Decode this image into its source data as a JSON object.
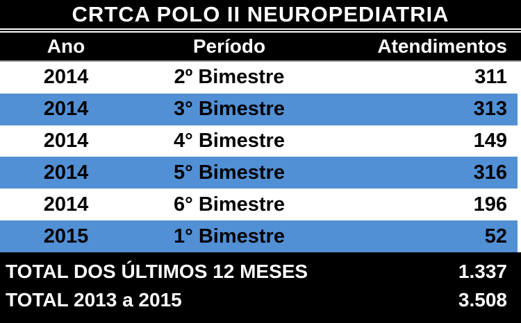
{
  "title": "CRTCA POLO II NEUROPEDIATRIA",
  "table": {
    "columns": {
      "ano": "Ano",
      "periodo": "Período",
      "atendimentos": "Atendimentos"
    },
    "rows": [
      {
        "ano": "2014",
        "periodo": "2º Bimestre",
        "atendimentos": "311"
      },
      {
        "ano": "2014",
        "periodo": "3° Bimestre",
        "atendimentos": "313"
      },
      {
        "ano": "2014",
        "periodo": "4° Bimestre",
        "atendimentos": "149"
      },
      {
        "ano": "2014",
        "periodo": "5° Bimestre",
        "atendimentos": "316"
      },
      {
        "ano": "2014",
        "periodo": "6° Bimestre",
        "atendimentos": "196"
      },
      {
        "ano": "2015",
        "periodo": "1° Bimestre",
        "atendimentos": "52"
      }
    ],
    "totals": [
      {
        "label": "TOTAL DOS ÚLTIMOS 12 MESES",
        "value": "1.337"
      },
      {
        "label": "TOTAL 2013 a 2015",
        "value": "3.508"
      }
    ]
  },
  "colors": {
    "band_blue": "#5290D5",
    "bar_black": "#000000",
    "bar_text": "#FFFFFF",
    "row_text": "#000000",
    "header_divider_gray": "#8A8A8A"
  },
  "chart_data": {
    "type": "table",
    "title": "CRTCA POLO II NEUROPEDIATRIA",
    "columns": [
      "Ano",
      "Período",
      "Atendimentos"
    ],
    "rows": [
      [
        "2014",
        "2º Bimestre",
        311
      ],
      [
        "2014",
        "3° Bimestre",
        313
      ],
      [
        "2014",
        "4° Bimestre",
        149
      ],
      [
        "2014",
        "5° Bimestre",
        316
      ],
      [
        "2014",
        "6° Bimestre",
        196
      ],
      [
        "2015",
        "1° Bimestre",
        52
      ]
    ],
    "totals": [
      {
        "label": "TOTAL DOS ÚLTIMOS 12 MESES",
        "value": 1337
      },
      {
        "label": "TOTAL 2013 a 2015",
        "value": 3508
      }
    ],
    "layout_hints": {
      "banded_rows": true,
      "band_color": "#5290D5",
      "header_style": "white-text-on-black",
      "value_alignment": "right"
    }
  }
}
